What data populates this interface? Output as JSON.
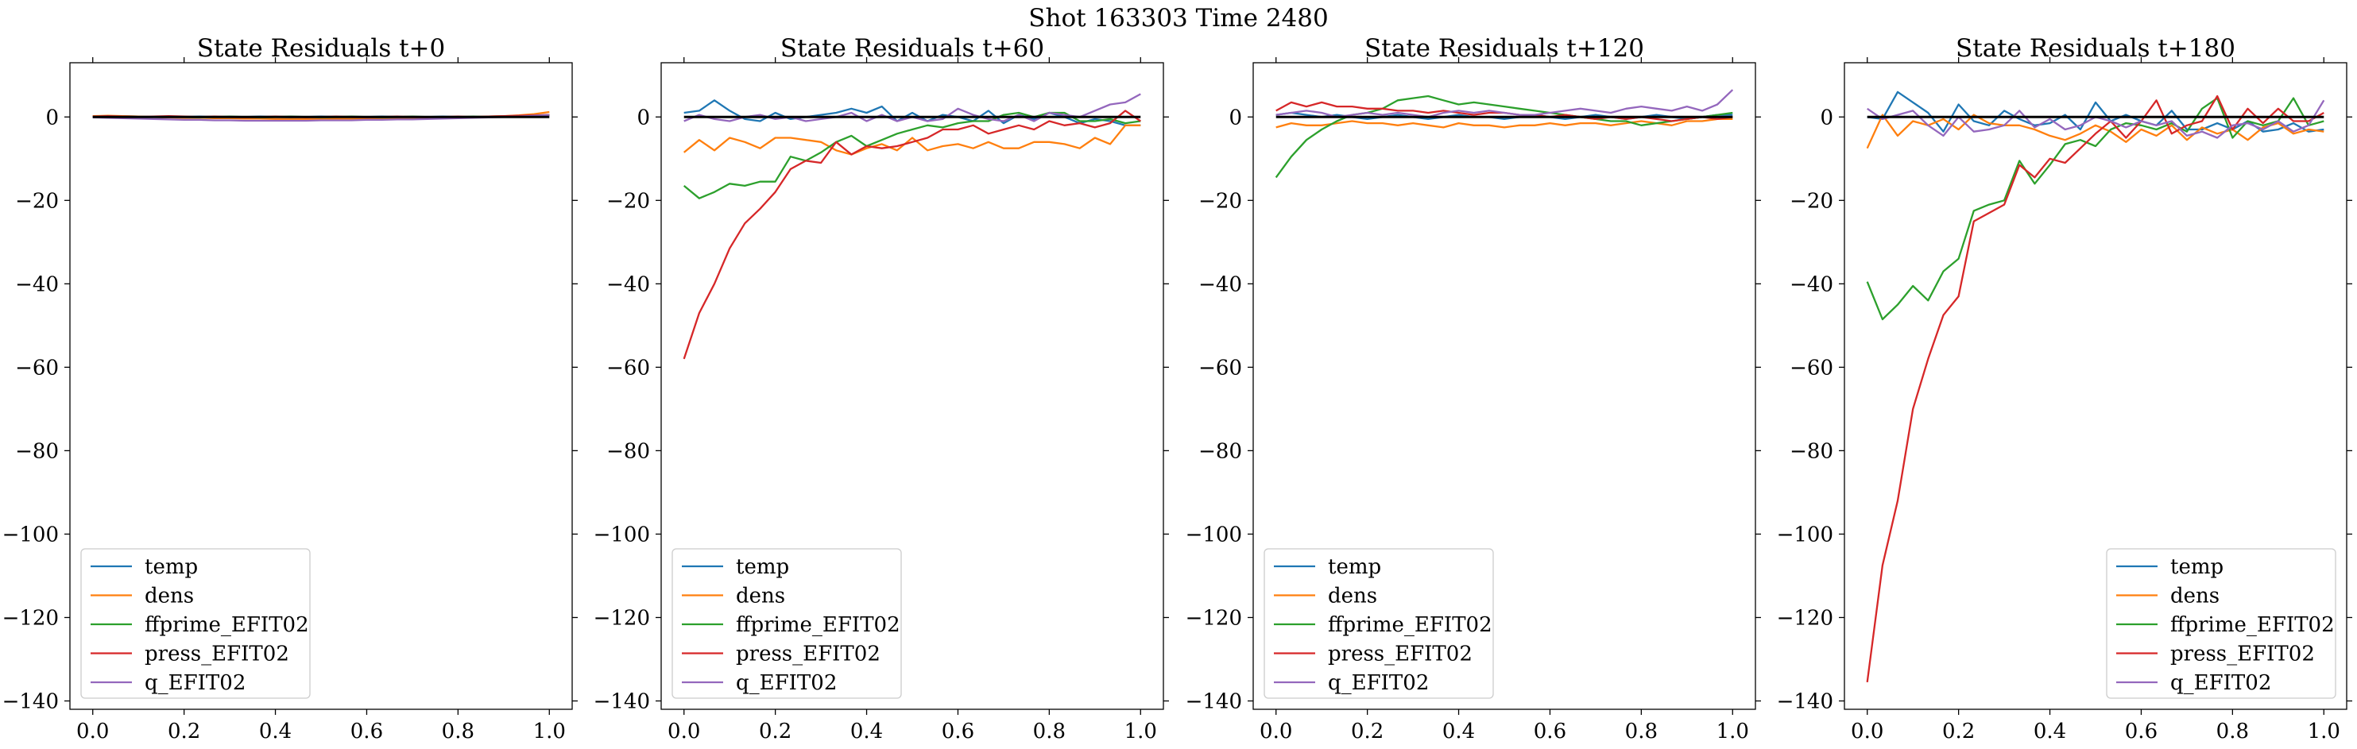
{
  "figure": {
    "suptitle": "Shot 163303   Time 2480"
  },
  "chart_data": [
    {
      "type": "line",
      "title": "State Residuals t+0",
      "xlabel": "",
      "ylabel": "",
      "xlim": [
        -0.05,
        1.05
      ],
      "ylim": [
        -142,
        13
      ],
      "xticks": [
        "0.0",
        "0.2",
        "0.4",
        "0.6",
        "0.8",
        "1.0"
      ],
      "yticks": [
        "0",
        "−20",
        "−40",
        "−60",
        "−80",
        "−100",
        "−120",
        "−140"
      ],
      "legend_position": "lower left",
      "x": [
        0.0,
        0.0333,
        0.0667,
        0.1,
        0.1333,
        0.1667,
        0.2,
        0.2333,
        0.2667,
        0.3,
        0.3333,
        0.3667,
        0.4,
        0.4333,
        0.4667,
        0.5,
        0.5333,
        0.5667,
        0.6,
        0.6333,
        0.6667,
        0.7,
        0.7333,
        0.7667,
        0.8,
        0.8333,
        0.8667,
        0.9,
        0.9333,
        0.9667,
        1.0
      ],
      "series": [
        {
          "name": "temp",
          "values": [
            0.1,
            0.0,
            0.2,
            0.1,
            0.0,
            -0.1,
            0.0,
            0.1,
            0.0,
            -0.1,
            0.0,
            0.1,
            0.0,
            -0.1,
            0.0,
            0.1,
            0.0,
            -0.1,
            0.0,
            0.1,
            0.0,
            -0.1,
            0.0,
            0.1,
            0.0,
            -0.1,
            0.0,
            0.1,
            0.2,
            0.3,
            0.4
          ]
        },
        {
          "name": "dens",
          "values": [
            0.2,
            0.3,
            0.2,
            0.1,
            0.0,
            -0.1,
            -0.2,
            -0.2,
            -0.3,
            -0.3,
            -0.4,
            -0.4,
            -0.5,
            -0.5,
            -0.5,
            -0.5,
            -0.4,
            -0.4,
            -0.4,
            -0.3,
            -0.3,
            -0.2,
            -0.2,
            -0.1,
            -0.1,
            0.0,
            0.1,
            0.2,
            0.4,
            0.7,
            1.2
          ]
        },
        {
          "name": "ffprime_EFIT02",
          "values": [
            0.0,
            0.1,
            0.0,
            -0.1,
            0.0,
            0.1,
            0.0,
            -0.1,
            0.0,
            0.1,
            0.0,
            -0.1,
            0.0,
            0.1,
            0.0,
            -0.1,
            0.0,
            0.1,
            0.0,
            -0.1,
            0.0,
            0.1,
            0.0,
            -0.1,
            0.0,
            0.1,
            0.0,
            0.1,
            0.2,
            0.3,
            0.5
          ]
        },
        {
          "name": "press_EFIT02",
          "values": [
            0.1,
            0.2,
            0.1,
            0.0,
            0.1,
            0.2,
            0.1,
            0.0,
            0.1,
            0.0,
            -0.1,
            0.0,
            0.1,
            0.0,
            -0.1,
            0.0,
            0.1,
            0.0,
            -0.1,
            0.0,
            0.1,
            0.0,
            -0.1,
            0.0,
            0.1,
            0.0,
            0.1,
            0.2,
            0.3,
            0.4,
            0.5
          ]
        },
        {
          "name": "q_EFIT02",
          "values": [
            -0.1,
            -0.2,
            -0.3,
            -0.4,
            -0.5,
            -0.6,
            -0.7,
            -0.7,
            -0.8,
            -0.8,
            -0.9,
            -0.9,
            -0.9,
            -0.9,
            -0.9,
            -0.8,
            -0.8,
            -0.8,
            -0.7,
            -0.7,
            -0.6,
            -0.6,
            -0.5,
            -0.4,
            -0.3,
            -0.2,
            -0.1,
            0.0,
            0.1,
            0.3,
            0.5
          ]
        }
      ]
    },
    {
      "type": "line",
      "title": "State Residuals t+60",
      "xlabel": "",
      "ylabel": "",
      "xlim": [
        -0.05,
        1.05
      ],
      "ylim": [
        -142,
        13
      ],
      "xticks": [
        "0.0",
        "0.2",
        "0.4",
        "0.6",
        "0.8",
        "1.0"
      ],
      "yticks": [
        "0",
        "−20",
        "−40",
        "−60",
        "−80",
        "−100",
        "−120",
        "−140"
      ],
      "legend_position": "lower left",
      "x": [
        0.0,
        0.0333,
        0.0667,
        0.1,
        0.1333,
        0.1667,
        0.2,
        0.2333,
        0.2667,
        0.3,
        0.3333,
        0.3667,
        0.4,
        0.4333,
        0.4667,
        0.5,
        0.5333,
        0.5667,
        0.6,
        0.6333,
        0.6667,
        0.7,
        0.7333,
        0.7667,
        0.8,
        0.8333,
        0.8667,
        0.9,
        0.9333,
        0.9667,
        1.0
      ],
      "series": [
        {
          "name": "temp",
          "values": [
            1.0,
            1.5,
            4.0,
            1.5,
            -0.5,
            -1.0,
            1.0,
            -0.5,
            0.0,
            0.5,
            1.0,
            2.0,
            1.0,
            2.5,
            -1.0,
            1.0,
            -1.0,
            0.5,
            0.0,
            -1.0,
            1.5,
            -1.5,
            0.5,
            -0.5,
            1.0,
            0.0,
            -1.5,
            -0.5,
            -1.0,
            -2.0,
            -2.0
          ]
        },
        {
          "name": "dens",
          "values": [
            -8.5,
            -5.5,
            -8.0,
            -5.0,
            -6.0,
            -7.5,
            -5.0,
            -5.0,
            -5.5,
            -6.0,
            -8.0,
            -9.0,
            -7.5,
            -6.5,
            -8.0,
            -5.0,
            -8.0,
            -7.0,
            -6.5,
            -7.5,
            -6.0,
            -7.5,
            -7.5,
            -6.0,
            -6.0,
            -6.5,
            -7.5,
            -5.0,
            -6.5,
            -2.0,
            -2.0
          ]
        },
        {
          "name": "ffprime_EFIT02",
          "values": [
            -16.5,
            -19.5,
            -18.0,
            -16.0,
            -16.5,
            -15.5,
            -15.5,
            -9.5,
            -10.5,
            -8.5,
            -6.0,
            -4.5,
            -7.0,
            -5.5,
            -4.0,
            -3.0,
            -2.0,
            -2.5,
            -1.5,
            -1.0,
            -1.0,
            0.5,
            1.0,
            0.0,
            1.0,
            1.0,
            -1.0,
            -1.0,
            -0.5,
            -1.5,
            -1.0
          ]
        },
        {
          "name": "press_EFIT02",
          "values": [
            -58.0,
            -47.0,
            -40.0,
            -31.5,
            -25.5,
            -22.0,
            -18.0,
            -12.5,
            -10.5,
            -11.0,
            -6.0,
            -9.0,
            -7.0,
            -7.5,
            -7.0,
            -6.0,
            -5.0,
            -3.0,
            -3.0,
            -2.0,
            -4.0,
            -3.0,
            -2.0,
            -3.0,
            -1.0,
            -2.0,
            -1.5,
            -2.5,
            -1.5,
            1.5,
            -1.0
          ]
        },
        {
          "name": "q_EFIT02",
          "values": [
            -1.0,
            0.5,
            -0.5,
            -1.0,
            0.0,
            0.5,
            -0.5,
            0.0,
            -1.0,
            -0.5,
            0.0,
            1.0,
            -1.0,
            0.5,
            -1.0,
            0.0,
            -1.0,
            -0.5,
            2.0,
            0.5,
            -0.5,
            -1.0,
            0.5,
            -1.0,
            1.0,
            0.5,
            0.0,
            1.5,
            3.0,
            3.5,
            5.5
          ]
        }
      ]
    },
    {
      "type": "line",
      "title": "State Residuals t+120",
      "xlabel": "",
      "ylabel": "",
      "xlim": [
        -0.05,
        1.05
      ],
      "ylim": [
        -142,
        13
      ],
      "xticks": [
        "0.0",
        "0.2",
        "0.4",
        "0.6",
        "0.8",
        "1.0"
      ],
      "yticks": [
        "0",
        "−20",
        "−40",
        "−60",
        "−80",
        "−100",
        "−120",
        "−140"
      ],
      "legend_position": "lower left",
      "x": [
        0.0,
        0.0333,
        0.0667,
        0.1,
        0.1333,
        0.1667,
        0.2,
        0.2333,
        0.2667,
        0.3,
        0.3333,
        0.3667,
        0.4,
        0.4333,
        0.4667,
        0.5,
        0.5333,
        0.5667,
        0.6,
        0.6333,
        0.6667,
        0.7,
        0.7333,
        0.7667,
        0.8,
        0.8333,
        0.8667,
        0.9,
        0.9333,
        0.9667,
        1.0
      ],
      "series": [
        {
          "name": "temp",
          "values": [
            0.5,
            1.0,
            0.5,
            0.0,
            0.5,
            0.0,
            -0.5,
            0.0,
            0.5,
            0.0,
            -0.5,
            0.0,
            0.5,
            0.0,
            0.0,
            -0.5,
            0.0,
            0.5,
            0.0,
            -0.5,
            0.0,
            0.5,
            0.0,
            -0.5,
            0.0,
            0.5,
            0.0,
            -0.5,
            0.0,
            0.5,
            0.5
          ]
        },
        {
          "name": "dens",
          "values": [
            -2.5,
            -1.5,
            -2.0,
            -2.0,
            -1.5,
            -1.0,
            -1.5,
            -1.5,
            -2.0,
            -1.5,
            -2.0,
            -2.5,
            -1.5,
            -2.0,
            -2.0,
            -2.5,
            -2.0,
            -2.0,
            -1.5,
            -2.0,
            -1.5,
            -1.5,
            -2.0,
            -1.5,
            -1.0,
            -1.5,
            -2.0,
            -1.0,
            -1.0,
            -0.5,
            -0.5
          ]
        },
        {
          "name": "ffprime_EFIT02",
          "values": [
            -14.5,
            -9.5,
            -5.5,
            -3.0,
            -1.0,
            0.5,
            1.0,
            2.0,
            4.0,
            4.5,
            5.0,
            4.0,
            3.0,
            3.5,
            3.0,
            2.5,
            2.0,
            1.5,
            1.0,
            0.5,
            0.0,
            -0.5,
            -1.0,
            -1.0,
            -2.0,
            -1.5,
            -1.0,
            -0.5,
            0.0,
            0.5,
            1.0
          ]
        },
        {
          "name": "press_EFIT02",
          "values": [
            1.5,
            3.5,
            2.5,
            3.5,
            2.5,
            2.5,
            2.0,
            2.0,
            1.5,
            1.5,
            1.0,
            1.5,
            1.0,
            0.5,
            1.0,
            1.0,
            0.5,
            0.5,
            0.0,
            0.5,
            0.0,
            -0.5,
            0.0,
            -0.5,
            0.0,
            -0.5,
            -1.0,
            -0.5,
            0.0,
            -0.5,
            0.0
          ]
        },
        {
          "name": "q_EFIT02",
          "values": [
            0.5,
            1.0,
            1.5,
            1.0,
            0.0,
            0.5,
            1.0,
            0.5,
            1.0,
            0.5,
            0.0,
            1.0,
            1.5,
            1.0,
            1.5,
            1.0,
            0.5,
            0.5,
            1.0,
            1.5,
            2.0,
            1.5,
            1.0,
            2.0,
            2.5,
            2.0,
            1.5,
            2.5,
            1.5,
            3.0,
            6.5
          ]
        }
      ]
    },
    {
      "type": "line",
      "title": "State Residuals t+180",
      "xlabel": "",
      "ylabel": "",
      "xlim": [
        -0.05,
        1.05
      ],
      "ylim": [
        -142,
        13
      ],
      "xticks": [
        "0.0",
        "0.2",
        "0.4",
        "0.6",
        "0.8",
        "1.0"
      ],
      "yticks": [
        "0",
        "−20",
        "−40",
        "−60",
        "−80",
        "−100",
        "−120",
        "−140"
      ],
      "legend_position": "lower right",
      "x": [
        0.0,
        0.0333,
        0.0667,
        0.1,
        0.1333,
        0.1667,
        0.2,
        0.2333,
        0.2667,
        0.3,
        0.3333,
        0.3667,
        0.4,
        0.4333,
        0.4667,
        0.5,
        0.5333,
        0.5667,
        0.6,
        0.6333,
        0.6667,
        0.7,
        0.7333,
        0.7667,
        0.8,
        0.8333,
        0.8667,
        0.9,
        0.9333,
        0.9667,
        1.0
      ],
      "series": [
        {
          "name": "temp",
          "values": [
            0.0,
            -0.5,
            6.0,
            3.5,
            1.0,
            -3.5,
            3.0,
            -1.0,
            -2.0,
            1.5,
            -0.5,
            -2.0,
            -1.5,
            0.5,
            -3.0,
            3.5,
            -1.0,
            0.5,
            -1.0,
            -2.0,
            1.5,
            -3.0,
            -3.0,
            -1.5,
            -3.0,
            -1.0,
            -3.5,
            -3.0,
            -1.5,
            -3.5,
            -3.0
          ]
        },
        {
          "name": "dens",
          "values": [
            -7.5,
            0.5,
            -4.5,
            -1.0,
            -2.0,
            -0.5,
            -3.0,
            0.5,
            -1.5,
            -2.0,
            -2.0,
            -3.0,
            -4.5,
            -5.5,
            -4.0,
            -2.0,
            -3.5,
            -6.0,
            -3.0,
            -4.5,
            -2.0,
            -5.5,
            -2.5,
            -4.0,
            -3.0,
            -5.5,
            -2.5,
            -1.5,
            -4.0,
            -3.0,
            -3.5
          ]
        },
        {
          "name": "ffprime_EFIT02",
          "values": [
            -39.5,
            -48.5,
            -45.0,
            -40.5,
            -44.0,
            -37.0,
            -34.0,
            -22.5,
            -21.0,
            -20.0,
            -10.5,
            -16.0,
            -11.5,
            -6.5,
            -5.5,
            -7.0,
            -3.0,
            -1.5,
            -2.0,
            -3.0,
            -1.5,
            -3.5,
            2.0,
            4.5,
            -5.0,
            -1.0,
            -2.0,
            -1.0,
            4.5,
            -2.0,
            -1.0
          ]
        },
        {
          "name": "press_EFIT02",
          "values": [
            -135.5,
            -107.5,
            -92.0,
            -70.0,
            -58.0,
            -47.5,
            -43.0,
            -25.0,
            -23.0,
            -21.0,
            -11.5,
            -14.5,
            -10.0,
            -11.0,
            -7.5,
            -4.0,
            -1.0,
            -5.0,
            -1.0,
            4.0,
            -4.0,
            -2.0,
            -1.0,
            5.0,
            -3.0,
            2.0,
            -1.5,
            2.0,
            -1.0,
            -1.0,
            1.0
          ]
        },
        {
          "name": "q_EFIT02",
          "values": [
            2.0,
            -0.5,
            0.5,
            1.5,
            -2.0,
            -4.5,
            0.0,
            -3.5,
            -3.0,
            -2.0,
            1.5,
            -2.5,
            -0.5,
            -3.0,
            -2.0,
            0.0,
            -1.0,
            -2.5,
            -1.0,
            -2.0,
            -1.0,
            -4.5,
            -3.5,
            -5.0,
            -2.0,
            -1.5,
            -3.0,
            -1.0,
            -3.5,
            -2.0,
            4.0
          ]
        }
      ]
    }
  ],
  "colors": {
    "temp": "#1f77b4",
    "dens": "#ff7f0e",
    "ffprime_EFIT02": "#2ca02c",
    "press_EFIT02": "#d62728",
    "q_EFIT02": "#9467bd",
    "zero_line": "#000000"
  }
}
